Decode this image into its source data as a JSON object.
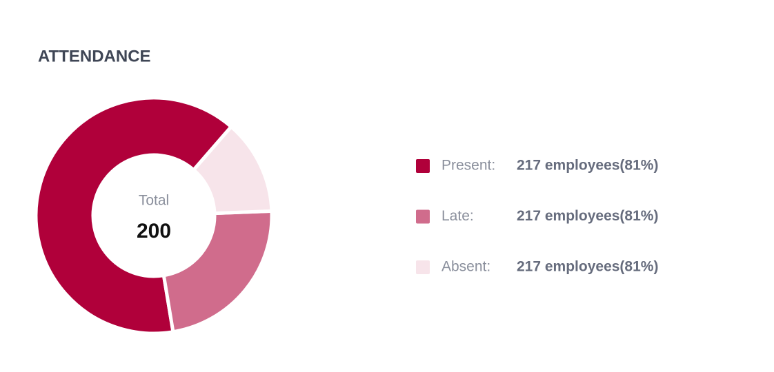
{
  "chart_data": {
    "type": "donut",
    "title": "ATTENDANCE",
    "center_label": "Total",
    "center_value": 200,
    "series": [
      {
        "name": "Present:",
        "color": "#b0003a",
        "value": 64,
        "detail": "217 employees(81%)"
      },
      {
        "name": "Late:",
        "color": "#d06c8c",
        "value": 23,
        "detail": "217 employees(81%)"
      },
      {
        "name": "Absent:",
        "color": "#f7e4ea",
        "value": 13,
        "detail": "217 employees(81%)"
      }
    ]
  }
}
